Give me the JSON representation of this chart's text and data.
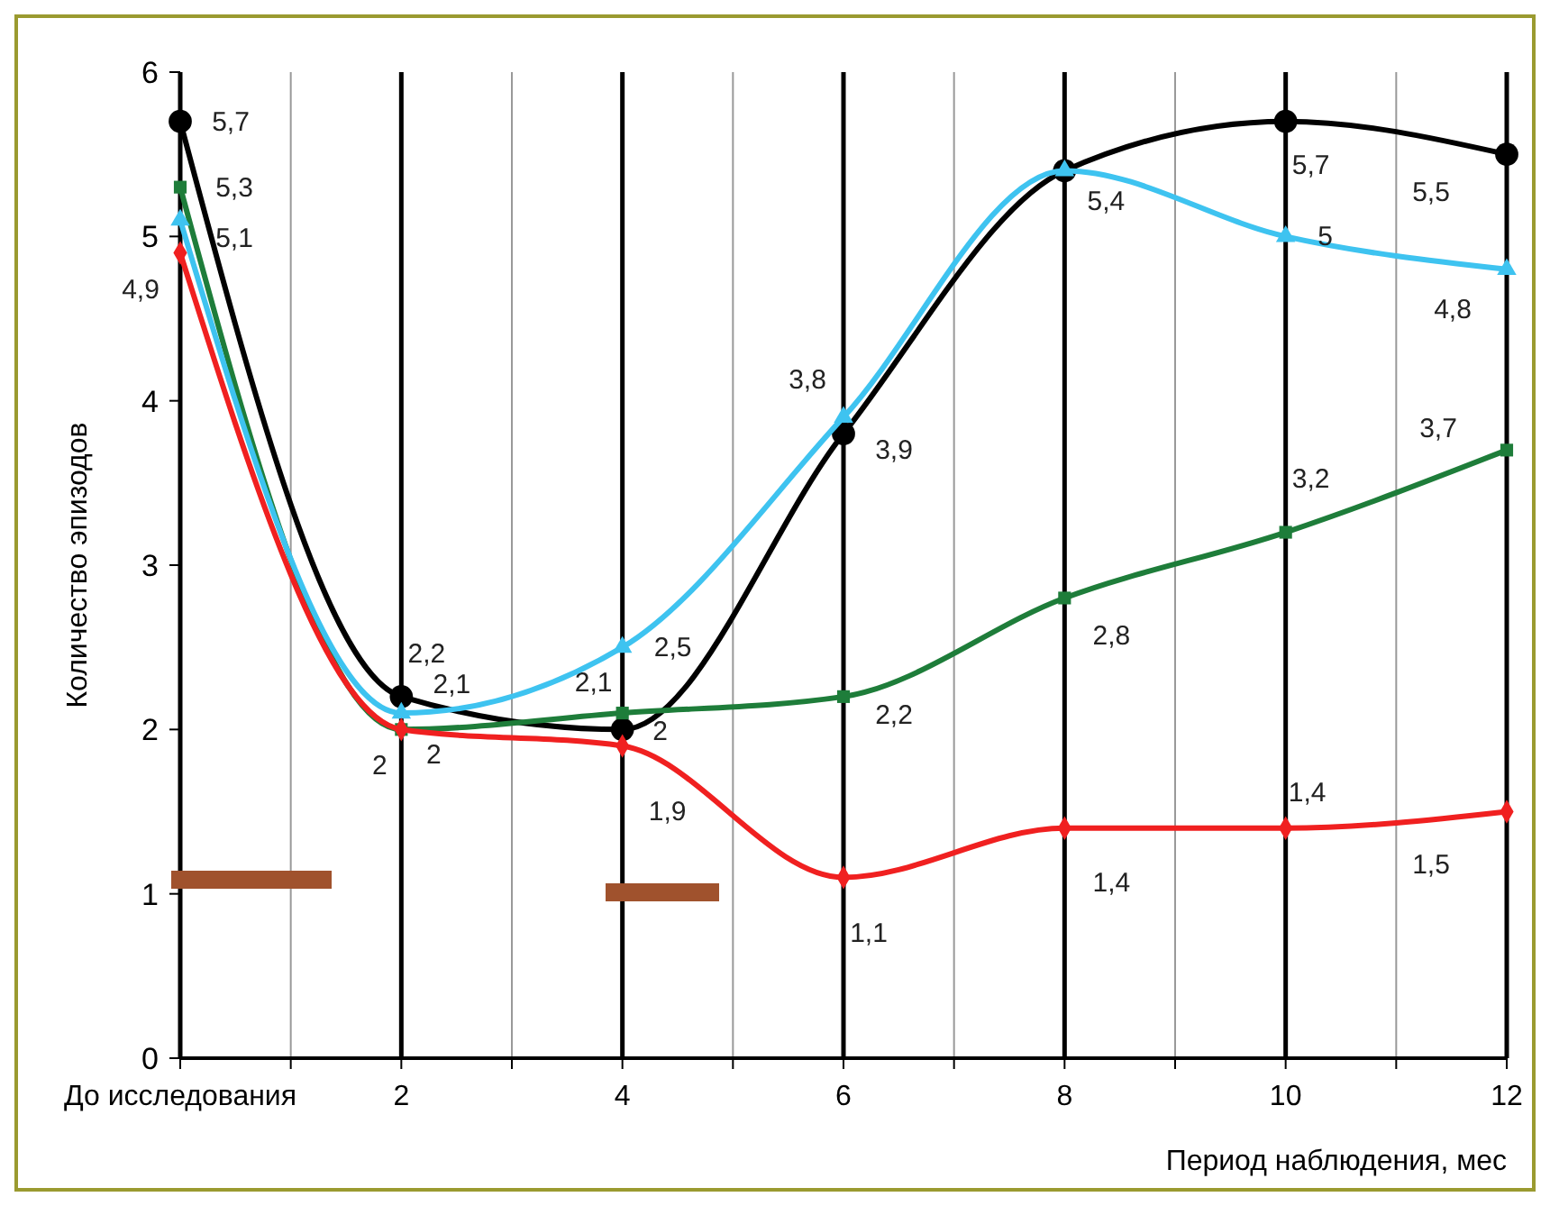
{
  "chart_data": {
    "type": "line",
    "xlabel": "Период наблюдения, мес",
    "ylabel": "Количество эпизодов",
    "x": [
      0,
      2,
      4,
      6,
      8,
      10,
      12
    ],
    "xlim": [
      0,
      12
    ],
    "xticks": [
      {
        "value": 0,
        "label": "До исследования"
      },
      {
        "value": 1,
        "label": null
      },
      2,
      {
        "value": 3,
        "label": null
      },
      4,
      {
        "value": 5,
        "label": null
      },
      6,
      {
        "value": 7,
        "label": null
      },
      8,
      {
        "value": 9,
        "label": null
      },
      10,
      {
        "value": 11,
        "label": null
      },
      12
    ],
    "ylim": [
      0,
      6
    ],
    "yticks": [
      0,
      1,
      2,
      3,
      4,
      5,
      6
    ],
    "grid": "x",
    "data_labels": true,
    "series": [
      {
        "color": "#000000",
        "marker": "circle",
        "values": [
          5.7,
          2.2,
          2,
          3.8,
          5.4,
          5.7,
          5.5
        ],
        "value_labels": [
          "5,7",
          "2,2",
          "2",
          "3,8",
          null,
          "5,7",
          "5,5"
        ]
      },
      {
        "color": "#1e7d3a",
        "marker": "square",
        "values": [
          5.3,
          2,
          2.1,
          2.2,
          2.8,
          3.2,
          3.7
        ],
        "value_labels": [
          "5,3",
          "2",
          "2,1",
          "2,2",
          "2,8",
          "3,2",
          "3,7"
        ]
      },
      {
        "color": "#3ec3f0",
        "marker": "triangle",
        "values": [
          5.1,
          2.1,
          2.5,
          3.9,
          5.4,
          5,
          4.8
        ],
        "value_labels": [
          "5,1",
          "2,1",
          "2,5",
          "3,9",
          "5,4",
          "5",
          "4,8"
        ]
      },
      {
        "color": "#f02020",
        "marker": "diamond",
        "values": [
          4.9,
          2,
          1.9,
          1.1,
          1.4,
          1.4,
          1.5
        ],
        "value_labels": [
          "4,9",
          "2",
          "1,9",
          "1,1",
          "1,4",
          "1,4",
          "1,5"
        ]
      }
    ]
  }
}
